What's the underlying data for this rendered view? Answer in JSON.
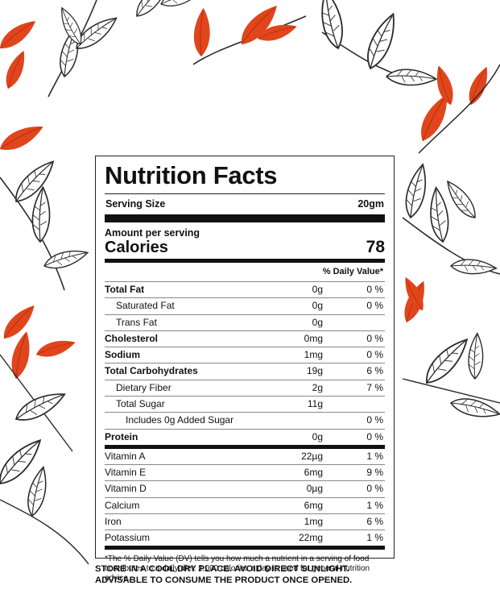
{
  "label": {
    "title": "Nutrition Facts",
    "serving_label": "Serving Size",
    "serving_value": "20gm",
    "amount_per_serving": "Amount per serving",
    "calories_label": "Calories",
    "calories_value": "78",
    "dv_header": "% Daily Value*",
    "nutrients": [
      {
        "name": "Total Fat",
        "amount": "0g",
        "dv": "0 %"
      },
      {
        "name": "Saturated Fat",
        "amount": "0g",
        "dv": "0 %"
      },
      {
        "name": "Trans Fat",
        "amount": "0g",
        "dv": ""
      },
      {
        "name": "Cholesterol",
        "amount": "0mg",
        "dv": "0 %"
      },
      {
        "name": "Sodium",
        "amount": "1mg",
        "dv": "0 %"
      },
      {
        "name": "Total Carbohydrates",
        "amount": "19g",
        "dv": "6 %"
      },
      {
        "name": "Dietary Fiber",
        "amount": "2g",
        "dv": "7 %"
      },
      {
        "name": "Total Sugar",
        "amount": "11g",
        "dv": ""
      },
      {
        "name": "Includes 0g Added Sugar",
        "amount": "",
        "dv": "0 %"
      },
      {
        "name": "Protein",
        "amount": "0g",
        "dv": "0 %"
      }
    ],
    "vitamins": [
      {
        "name": "Vitamin A",
        "amount": "22µg",
        "dv": "1 %"
      },
      {
        "name": "Vitamin E",
        "amount": "6mg",
        "dv": "9 %"
      },
      {
        "name": "Vitamin D",
        "amount": "0µg",
        "dv": "0 %"
      },
      {
        "name": "Calcium",
        "amount": "6mg",
        "dv": "1 %"
      },
      {
        "name": "Iron",
        "amount": "1mg",
        "dv": "6 %"
      },
      {
        "name": "Potassium",
        "amount": "22mg",
        "dv": "1 %"
      }
    ],
    "footnote": "*The % Daily Value (DV) tells you how much a nutrient in a serving of food contributes to a daily diet. 2,000 calories a day is used for general nutrition advice."
  },
  "storage": {
    "line1": "STORE IN A COOL DRY PLACE. AVOID DIRECT SUNLIGHT.",
    "line2": "ADVISABLE TO CONSUME THE PRODUCT ONCE OPENED."
  },
  "colors": {
    "leaf_orange": "#e0451c",
    "leaf_outline": "#2a2a2a",
    "text": "#111111"
  },
  "decoration": {
    "icon": "tea-leaf-branch-pattern"
  }
}
